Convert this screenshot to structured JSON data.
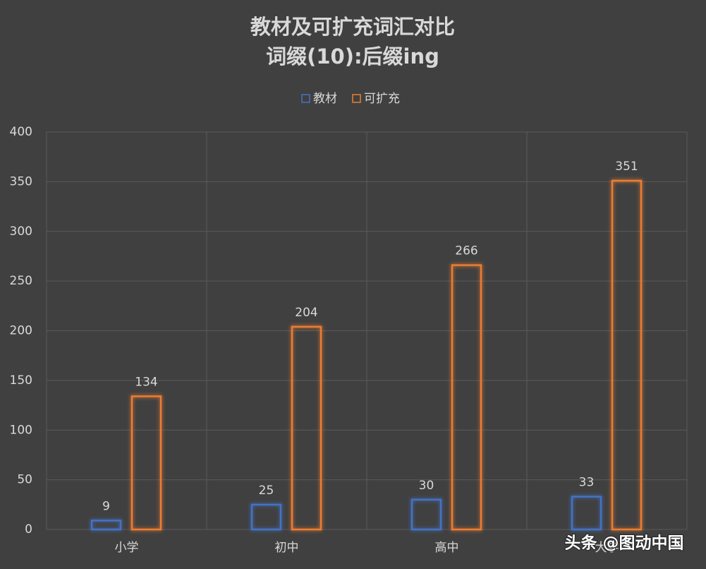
{
  "chart_data": {
    "type": "bar",
    "title": "教材及可扩充词汇对比",
    "subtitle": "词缀(10):后缀ing",
    "categories": [
      "小学",
      "初中",
      "高中",
      "大学"
    ],
    "series": [
      {
        "name": "教材",
        "color": "#4472c4",
        "values": [
          9,
          25,
          30,
          33
        ]
      },
      {
        "name": "可扩充",
        "color": "#ed7d31",
        "values": [
          134,
          204,
          266,
          351
        ]
      }
    ],
    "ylim": [
      0,
      400
    ],
    "yticks": [
      0,
      50,
      100,
      150,
      200,
      250,
      300,
      350,
      400
    ],
    "grid": true,
    "legend": "top",
    "watermark": "头条 @图动中国"
  }
}
